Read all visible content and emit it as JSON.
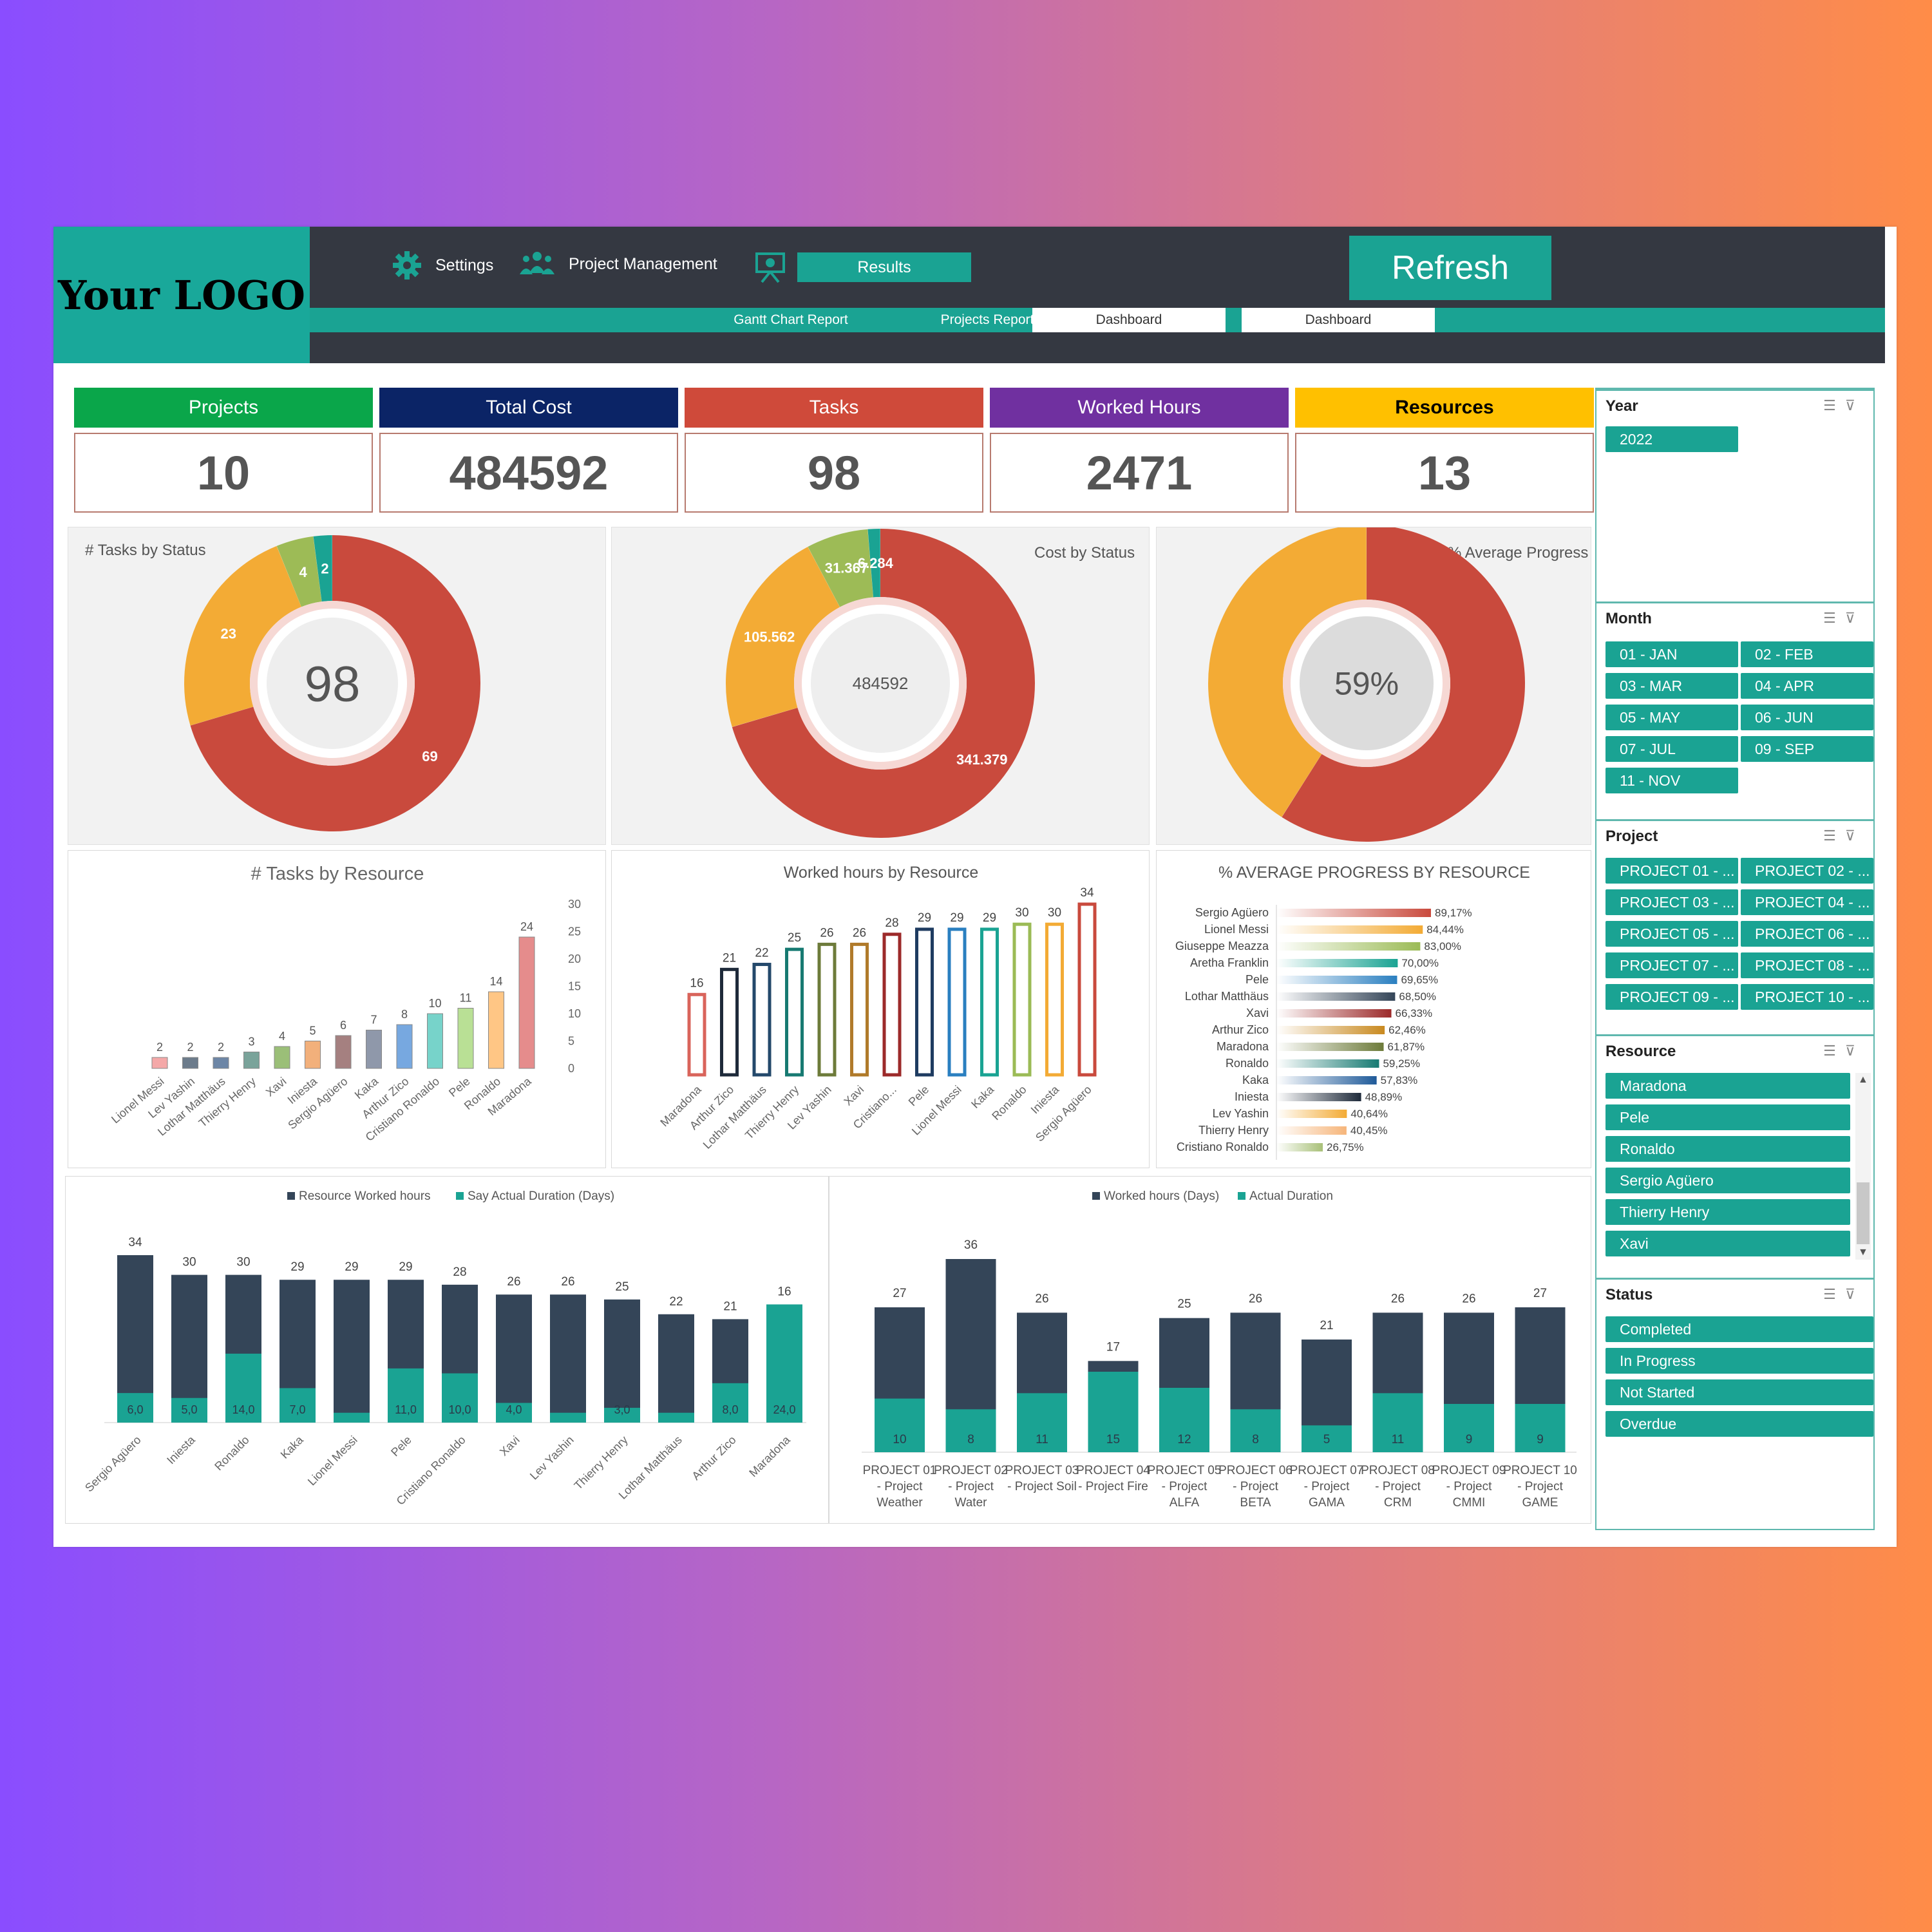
{
  "header": {
    "logo": "Your LOGO",
    "settings": "Settings",
    "project_management": "Project Management",
    "results": "Results",
    "refresh": "Refresh",
    "tabs": [
      "Gantt Chart Report",
      "Projects Report",
      "Dashboard",
      "Dashboard"
    ]
  },
  "kpis": [
    {
      "label": "Projects",
      "value": "10",
      "color": "#0aa64a"
    },
    {
      "label": "Total Cost",
      "value": "484592",
      "color": "#0b2466"
    },
    {
      "label": "Tasks",
      "value": "98",
      "color": "#cf4a3a"
    },
    {
      "label": "Worked Hours",
      "value": "2471",
      "color": "#7030a0"
    },
    {
      "label": "Resources",
      "value": "13",
      "color": "#ffc000"
    }
  ],
  "donuts": {
    "tasks": {
      "title": "# Tasks by Status",
      "center": "98",
      "slices": [
        {
          "label": "Overdue",
          "value": 69,
          "color": "#c94a3d"
        },
        {
          "label": "Completed",
          "value": 23,
          "color": "#f3ab35"
        },
        {
          "label": "Not Started",
          "value": 4,
          "color": "#9dbb56"
        },
        {
          "label": "In Progress",
          "value": 2,
          "color": "#1aa393"
        }
      ],
      "labels": [
        "69",
        "23",
        "4",
        "2"
      ]
    },
    "cost": {
      "title": "Cost by Status",
      "center": "484592",
      "slices": [
        {
          "label": "Overdue",
          "value": 341379,
          "color": "#c94a3d"
        },
        {
          "label": "Completed",
          "value": 105562,
          "color": "#f3ab35"
        },
        {
          "label": "Not Started",
          "value": 31367,
          "color": "#9dbb56"
        },
        {
          "label": "In Progress",
          "value": 6284,
          "color": "#1aa393"
        }
      ],
      "labels": [
        "341.379",
        "105.562",
        "31.367",
        "6.284"
      ]
    },
    "progress": {
      "title": "% Average Progress",
      "center": "59%",
      "slices": [
        {
          "label": "Progress",
          "value": 59,
          "color": "#c94a3d"
        },
        {
          "label": "Remaining",
          "value": 41,
          "color": "#f3ab35"
        }
      ]
    }
  },
  "chart_data": [
    {
      "type": "bar",
      "title": "# Tasks by Resource",
      "categories": [
        "Lionel Messi",
        "Lev Yashin",
        "Lothar Matthäus",
        "Thierry Henry",
        "Xavi",
        "Iniesta",
        "Sergio Agüero",
        "Kaka",
        "Arthur Zico",
        "Cristiano Ronaldo",
        "Pele",
        "Ronaldo",
        "Maradona"
      ],
      "values": [
        2,
        2,
        2,
        3,
        4,
        5,
        6,
        7,
        8,
        10,
        11,
        14,
        24
      ],
      "ylim": [
        0,
        30
      ],
      "yticks": [
        "30",
        "25",
        "20",
        "15",
        "10",
        "5",
        "0"
      ]
    },
    {
      "type": "bar",
      "title": "Worked  hours by Resource",
      "categories": [
        "Maradona",
        "Arthur Zico",
        "Lothar Matthäus",
        "Thierry Henry",
        "Lev Yashin",
        "Xavi",
        "Cristiano...",
        "Pele",
        "Lionel Messi",
        "Kaka",
        "Ronaldo",
        "Iniesta",
        "Sergio Agüero"
      ],
      "values": [
        16,
        21,
        22,
        25,
        26,
        26,
        28,
        29,
        29,
        29,
        30,
        30,
        34
      ]
    },
    {
      "type": "bar",
      "title": "% AVERAGE PROGRESS BY RESOURCE",
      "categories": [
        "Sergio Agüero",
        "Lionel Messi",
        "Giuseppe Meazza",
        "Aretha Franklin",
        "Pele",
        "Lothar Matthäus",
        "Xavi",
        "Arthur Zico",
        "Maradona",
        "Ronaldo",
        "Kaka",
        "Iniesta",
        "Lev Yashin",
        "Thierry Henry",
        "Cristiano Ronaldo"
      ],
      "values": [
        89.17,
        84.44,
        83.0,
        70.0,
        69.65,
        68.5,
        66.33,
        62.46,
        61.87,
        59.25,
        57.83,
        48.89,
        40.64,
        40.45,
        26.75
      ],
      "labels": [
        "89,17%",
        "84,44%",
        "83,00%",
        "70,00%",
        "69,65%",
        "68,50%",
        "66,33%",
        "62,46%",
        "61,87%",
        "59,25%",
        "57,83%",
        "48,89%",
        "40,64%",
        "40,45%",
        "26,75%"
      ]
    },
    {
      "type": "bar",
      "categories": [
        "Sergio Agüero",
        "Iniesta",
        "Ronaldo",
        "Kaka",
        "Lionel Messi",
        "Pele",
        "Cristiano Ronaldo",
        "Xavi",
        "Lev Yashin",
        "Thierry Henry",
        "Lothar Matthäus",
        "Arthur Zico",
        "Maradona"
      ],
      "series": [
        {
          "name": "Resource Worked hours",
          "values": [
            34,
            30,
            30,
            29,
            29,
            29,
            28,
            26,
            26,
            25,
            22,
            21,
            16
          ]
        },
        {
          "name": "Say Actual Duration (Days)",
          "values": [
            6,
            5,
            14,
            7,
            2,
            11,
            10,
            4,
            2,
            3,
            2,
            8,
            24
          ],
          "labels": [
            "6,0",
            "5,0",
            "14,0",
            "7,0",
            "",
            "11,0",
            "10,0",
            "4,0",
            "",
            "3,0",
            "",
            "8,0",
            "24,0"
          ]
        }
      ]
    },
    {
      "type": "bar",
      "categories": [
        [
          "PROJECT 01",
          "- Project",
          "Weather"
        ],
        [
          "PROJECT 02",
          "- Project",
          "Water"
        ],
        [
          "PROJECT 03",
          "- Project Soil"
        ],
        [
          "PROJECT 04",
          "- Project Fire"
        ],
        [
          "PROJECT 05",
          "- Project",
          "ALFA"
        ],
        [
          "PROJECT 06",
          "- Project",
          "BETA"
        ],
        [
          "PROJECT 07",
          "- Project",
          "GAMA"
        ],
        [
          "PROJECT 08",
          "- Project",
          "CRM"
        ],
        [
          "PROJECT 09",
          "- Project",
          "CMMI"
        ],
        [
          "PROJECT 10",
          "- Project",
          "GAME"
        ]
      ],
      "series": [
        {
          "name": "Worked hours (Days)",
          "values": [
            27,
            36,
            26,
            17,
            25,
            26,
            21,
            26,
            26,
            27
          ]
        },
        {
          "name": "Actual Duration",
          "values": [
            10,
            8,
            11,
            15,
            12,
            8,
            5,
            11,
            9,
            9
          ]
        }
      ]
    }
  ],
  "slicers": {
    "year": {
      "title": "Year",
      "items": [
        "2022"
      ]
    },
    "month": {
      "title": "Month",
      "items": [
        "01 - JAN",
        "02 - FEB",
        "03 - MAR",
        "04 - APR",
        "05 - MAY",
        "06 - JUN",
        "07 - JUL",
        "09 - SEP",
        "11 - NOV"
      ]
    },
    "project": {
      "title": "Project",
      "items": [
        "PROJECT 01 - ...",
        "PROJECT 02 - ...",
        "PROJECT 03 - ...",
        "PROJECT 04 - ...",
        "PROJECT 05 - ...",
        "PROJECT 06 - ...",
        "PROJECT 07 - ...",
        "PROJECT 08 - ...",
        "PROJECT 09 - ...",
        "PROJECT 10 - ..."
      ]
    },
    "resource": {
      "title": "Resource",
      "items": [
        "Maradona",
        "Pele",
        "Ronaldo",
        "Sergio Agüero",
        "Thierry Henry",
        "Xavi"
      ]
    },
    "status": {
      "title": "Status",
      "items": [
        "Completed",
        "In Progress",
        "Not Started",
        "Overdue"
      ]
    }
  },
  "colors": {
    "accent": "#1aa393",
    "dark": "#343841",
    "dark_bar": "#344558"
  }
}
